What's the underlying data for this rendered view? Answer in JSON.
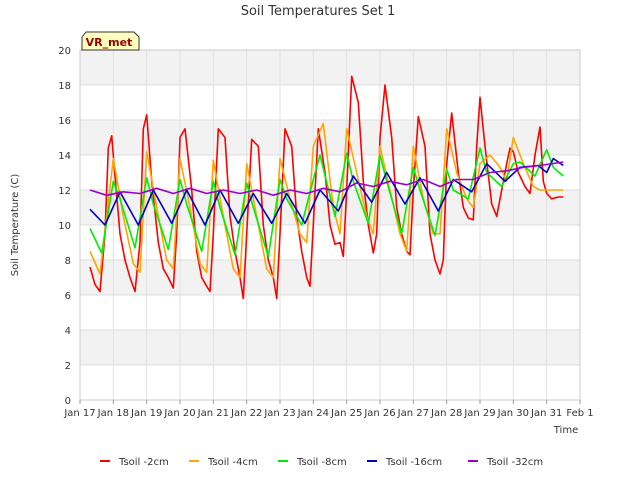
{
  "chart_data": {
    "type": "line",
    "title": "Soil Temperatures Set 1",
    "xlabel": "Time",
    "ylabel": "Soil Temperature (C)",
    "ylim": [
      0,
      20
    ],
    "xlim": [
      17,
      32
    ],
    "y_ticks": [
      0,
      2,
      4,
      6,
      8,
      10,
      12,
      14,
      16,
      18,
      20
    ],
    "x_ticks": [
      {
        "pos": 17,
        "label": "Jan 17"
      },
      {
        "pos": 18,
        "label": "Jan 18"
      },
      {
        "pos": 19,
        "label": "Jan 19"
      },
      {
        "pos": 20,
        "label": "Jan 20"
      },
      {
        "pos": 21,
        "label": "Jan 21"
      },
      {
        "pos": 22,
        "label": "Jan 22"
      },
      {
        "pos": 23,
        "label": "Jan 23"
      },
      {
        "pos": 24,
        "label": "Jan 24"
      },
      {
        "pos": 25,
        "label": "Jan 25"
      },
      {
        "pos": 26,
        "label": "Jan 26"
      },
      {
        "pos": 27,
        "label": "Jan 27"
      },
      {
        "pos": 28,
        "label": "Jan 28"
      },
      {
        "pos": 29,
        "label": "Jan 29"
      },
      {
        "pos": 30,
        "label": "Jan 30"
      },
      {
        "pos": 31,
        "label": "Jan 31"
      },
      {
        "pos": 32,
        "label": "Feb 1"
      }
    ],
    "grid": true,
    "legend": "bottom",
    "annotation": "VR_met",
    "series": [
      {
        "name": "Tsoil -2cm",
        "color": "#ff0000",
        "x": [
          17.3,
          17.45,
          17.6,
          17.75,
          17.85,
          17.95,
          18.05,
          18.2,
          18.35,
          18.5,
          18.65,
          18.8,
          18.9,
          19.0,
          19.15,
          19.35,
          19.5,
          19.65,
          19.8,
          19.9,
          20.0,
          20.15,
          20.35,
          20.5,
          20.65,
          20.8,
          20.9,
          21.0,
          21.15,
          21.35,
          21.5,
          21.65,
          21.8,
          21.9,
          22.0,
          22.15,
          22.35,
          22.5,
          22.65,
          22.8,
          22.9,
          23.0,
          23.15,
          23.35,
          23.5,
          23.65,
          23.8,
          23.9,
          24.0,
          24.15,
          24.35,
          24.5,
          24.65,
          24.8,
          24.9,
          25.0,
          25.15,
          25.35,
          25.5,
          25.65,
          25.8,
          25.9,
          26.0,
          26.15,
          26.35,
          26.5,
          26.65,
          26.8,
          26.9,
          27.0,
          27.15,
          27.35,
          27.5,
          27.65,
          27.8,
          27.9,
          28.0,
          28.15,
          28.35,
          28.5,
          28.65,
          28.8,
          28.9,
          29.0,
          29.15,
          29.35,
          29.5,
          29.65,
          29.8,
          29.9,
          30.0,
          30.15,
          30.35,
          30.5,
          30.65,
          30.8,
          30.9,
          31.0,
          31.15,
          31.35,
          31.5
        ],
        "y": [
          7.6,
          6.6,
          6.2,
          9.5,
          14.4,
          15.1,
          12.8,
          9.5,
          8.0,
          7.0,
          6.2,
          9.0,
          15.5,
          16.3,
          12.5,
          9.0,
          7.5,
          7.0,
          6.4,
          9.5,
          15.0,
          15.5,
          12.0,
          8.5,
          7.0,
          6.5,
          6.2,
          9.5,
          15.5,
          15.0,
          10.5,
          8.5,
          7.0,
          5.8,
          9.5,
          14.9,
          14.5,
          10.0,
          8.0,
          7.0,
          5.8,
          9.5,
          15.5,
          14.5,
          10.5,
          8.5,
          7.0,
          6.5,
          10.0,
          15.5,
          13.0,
          10.0,
          8.9,
          9.0,
          8.2,
          12.0,
          18.5,
          17.0,
          12.5,
          10.0,
          8.4,
          9.5,
          15.0,
          18.0,
          15.0,
          11.0,
          9.5,
          8.5,
          8.3,
          12.0,
          16.2,
          14.5,
          9.5,
          8.0,
          7.2,
          8.0,
          13.5,
          16.4,
          13.0,
          11.0,
          10.4,
          10.3,
          14.5,
          17.3,
          14.5,
          11.2,
          10.5,
          12.0,
          13.5,
          14.4,
          14.2,
          13.0,
          12.2,
          11.8,
          14.0,
          15.6,
          12.5,
          11.8,
          11.5,
          11.6,
          11.6
        ]
      },
      {
        "name": "Tsoil -4cm",
        "color": "#ffa500",
        "x": [
          17.3,
          17.6,
          17.8,
          18.0,
          18.3,
          18.6,
          18.8,
          19.0,
          19.3,
          19.6,
          19.8,
          20.0,
          20.3,
          20.6,
          20.8,
          21.0,
          21.3,
          21.6,
          21.8,
          22.0,
          22.3,
          22.6,
          22.8,
          23.0,
          23.3,
          23.6,
          23.8,
          24.0,
          24.3,
          24.6,
          24.8,
          25.0,
          25.3,
          25.6,
          25.8,
          26.0,
          26.3,
          26.6,
          26.8,
          27.0,
          27.3,
          27.6,
          27.8,
          28.0,
          28.3,
          28.6,
          28.8,
          29.0,
          29.3,
          29.6,
          29.8,
          30.0,
          30.3,
          30.6,
          30.8,
          31.0,
          31.3,
          31.5
        ],
        "y": [
          8.5,
          7.2,
          10.5,
          13.8,
          10.5,
          7.8,
          7.3,
          14.2,
          11.0,
          8.0,
          7.5,
          13.8,
          11.0,
          7.8,
          7.3,
          13.7,
          10.5,
          7.5,
          7.0,
          13.5,
          10.5,
          7.5,
          7.0,
          13.8,
          11.5,
          9.5,
          9.0,
          14.5,
          15.8,
          11.0,
          9.5,
          15.5,
          13.0,
          10.5,
          9.5,
          14.5,
          12.0,
          9.5,
          8.5,
          14.5,
          11.5,
          9.5,
          9.5,
          15.5,
          13.0,
          11.5,
          11.0,
          13.5,
          14.0,
          13.3,
          12.5,
          15.0,
          13.5,
          12.2,
          12.0,
          12.0,
          12.0,
          12.0
        ]
      },
      {
        "name": "Tsoil -8cm",
        "color": "#00ee00",
        "x": [
          17.3,
          17.65,
          18.0,
          18.2,
          18.65,
          19.0,
          19.2,
          19.65,
          20.0,
          20.2,
          20.65,
          21.0,
          21.2,
          21.65,
          22.0,
          22.2,
          22.65,
          23.0,
          23.2,
          23.65,
          24.0,
          24.2,
          24.65,
          25.0,
          25.2,
          25.65,
          26.0,
          26.2,
          26.65,
          27.0,
          27.2,
          27.65,
          28.0,
          28.2,
          28.65,
          29.0,
          29.2,
          29.65,
          30.0,
          30.2,
          30.65,
          31.0,
          31.2,
          31.5
        ],
        "y": [
          9.8,
          8.4,
          12.5,
          11.5,
          8.7,
          12.7,
          11.2,
          8.6,
          12.6,
          11.2,
          8.5,
          12.5,
          11.0,
          8.3,
          12.4,
          11.0,
          8.2,
          12.6,
          11.5,
          10.0,
          12.6,
          14.0,
          10.5,
          14.1,
          12.5,
          10.1,
          14.0,
          12.5,
          9.5,
          13.3,
          12.0,
          9.4,
          13.2,
          12.0,
          11.5,
          14.4,
          13.0,
          12.2,
          13.5,
          13.6,
          12.8,
          14.3,
          13.3,
          12.8
        ]
      },
      {
        "name": "Tsoil -16cm",
        "color": "#0000cc",
        "x": [
          17.3,
          17.75,
          18.2,
          18.75,
          19.2,
          19.75,
          20.2,
          20.75,
          21.2,
          21.75,
          22.2,
          22.75,
          23.2,
          23.75,
          24.2,
          24.75,
          25.2,
          25.75,
          26.2,
          26.75,
          27.2,
          27.75,
          28.2,
          28.75,
          29.2,
          29.75,
          30.2,
          30.75,
          31.0,
          31.2,
          31.5
        ],
        "y": [
          10.9,
          10.0,
          11.9,
          10.0,
          12.0,
          10.1,
          12.0,
          10.0,
          12.0,
          10.1,
          11.8,
          10.1,
          11.8,
          10.1,
          12.0,
          10.8,
          12.8,
          11.3,
          13.0,
          11.2,
          12.7,
          10.8,
          12.6,
          11.9,
          13.5,
          12.5,
          13.3,
          13.4,
          13.0,
          13.8,
          13.4
        ]
      },
      {
        "name": "Tsoil -32cm",
        "color": "#9900cc",
        "x": [
          17.3,
          17.8,
          18.3,
          18.8,
          19.3,
          19.8,
          20.3,
          20.8,
          21.3,
          21.8,
          22.3,
          22.8,
          23.3,
          23.8,
          24.3,
          24.8,
          25.3,
          25.8,
          26.3,
          26.8,
          27.3,
          27.8,
          28.3,
          28.8,
          29.3,
          29.8,
          30.3,
          30.8,
          31.5
        ],
        "y": [
          12.0,
          11.7,
          11.9,
          11.8,
          12.1,
          11.8,
          12.1,
          11.8,
          12.0,
          11.8,
          12.0,
          11.7,
          12.0,
          11.8,
          12.1,
          11.9,
          12.4,
          12.2,
          12.5,
          12.3,
          12.6,
          12.2,
          12.6,
          12.6,
          13.0,
          13.1,
          13.3,
          13.4,
          13.6
        ]
      }
    ]
  }
}
